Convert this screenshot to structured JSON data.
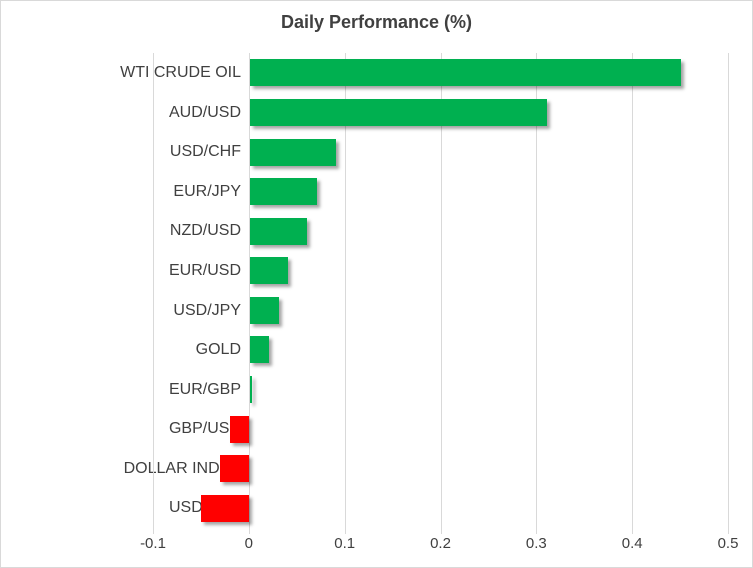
{
  "chart_data": {
    "type": "bar",
    "orientation": "horizontal",
    "title": "Daily Performance (%)",
    "categories": [
      "WTI CRUDE OIL",
      "AUD/USD",
      "USD/CHF",
      "EUR/JPY",
      "NZD/USD",
      "EUR/USD",
      "USD/JPY",
      "GOLD",
      "EUR/GBP",
      "GBP/USD",
      "DOLLAR INDEX",
      "USD/CAD"
    ],
    "values": [
      0.45,
      0.31,
      0.09,
      0.07,
      0.06,
      0.04,
      0.03,
      0.02,
      0.002,
      -0.02,
      -0.03,
      -0.05
    ],
    "xlabel": "",
    "ylabel": "",
    "xlim": [
      -0.1,
      0.5
    ],
    "xticks": [
      -0.1,
      0,
      0.1,
      0.2,
      0.3,
      0.4,
      0.5
    ],
    "xtick_labels": [
      "-0.1",
      "0",
      "0.1",
      "0.2",
      "0.3",
      "0.4",
      "0.5"
    ],
    "grid": true,
    "legend": false,
    "colors": {
      "positive_bar": "#00b050",
      "negative_bar": "#ff0000",
      "gridline": "#d9d9d9",
      "text": "#404040",
      "border": "#d9d9d9",
      "background": "#ffffff"
    }
  }
}
